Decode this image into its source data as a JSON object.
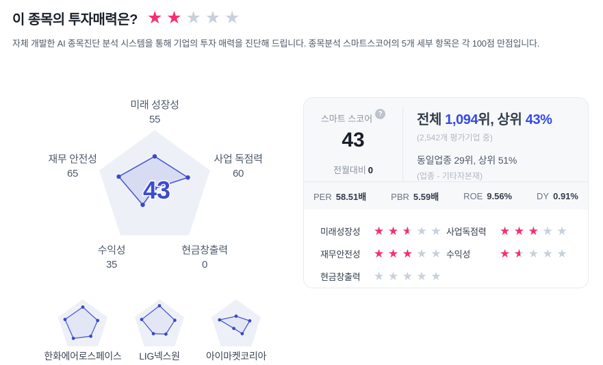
{
  "header": {
    "title": "이 종목의 투자매력은?",
    "rating": 2,
    "rating_max": 5,
    "subtitle": "자체 개발한 AI 종목진단 분석 시스템을 통해 기업의 투자 매력을 진단해 드립니다. 종목분석 스마트스코어의 5개 세부 항목은 각 100점 만점입니다."
  },
  "chart_data": {
    "type": "radar",
    "categories": [
      "미래 성장성",
      "사업 독점력",
      "현금창출력",
      "수익성",
      "재무 안전성"
    ],
    "values": [
      55,
      60,
      0,
      35,
      65
    ],
    "max": 100,
    "center_score": 43,
    "grid": false,
    "peers": [
      {
        "name": "한화에어로스페이스",
        "values": [
          70,
          60,
          52,
          62,
          72
        ]
      },
      {
        "name": "LIG넥스원",
        "values": [
          75,
          62,
          42,
          40,
          72
        ]
      },
      {
        "name": "아이마켓코리아",
        "values": [
          35,
          55,
          40,
          15,
          67
        ]
      }
    ]
  },
  "score_card": {
    "score_label": "스마트 스코어",
    "help_icon": "?",
    "score": "43",
    "mom_label": "전월대비",
    "mom_value": "0",
    "rank_line": {
      "prefix": "전체 ",
      "rank": "1,094",
      "mid": "위, 상위 ",
      "percent": "43%"
    },
    "rank_note": "(2,542개 평가기업 중)",
    "industry_line": "동일업종 29위, 상위 51%",
    "industry_note": "(업종 - 기타자본재)",
    "metrics": [
      {
        "label": "PER",
        "value": "58.51배"
      },
      {
        "label": "PBR",
        "value": "5.59배"
      },
      {
        "label": "ROE",
        "value": "9.56%"
      },
      {
        "label": "DY",
        "value": "0.91%"
      }
    ],
    "ratings": [
      {
        "label": "미래성장성",
        "stars": 2.5
      },
      {
        "label": "사업독점력",
        "stars": 3
      },
      {
        "label": "재무안전성",
        "stars": 3
      },
      {
        "label": "수익성",
        "stars": 1.5
      },
      {
        "label": "현금창출력",
        "stars": 0
      }
    ]
  },
  "icons": {
    "star": "★"
  },
  "colors": {
    "star_pink": "#fa2e6e",
    "star_gray": "#c8d0dc",
    "accent_blue": "#3348e8",
    "radar_stroke": "#4a59d0",
    "radar_dot": "#3949c6",
    "radar_fill": "rgba(106,120,220,0.16)",
    "radar_fill_mini": "rgba(140,152,230,0.10)",
    "radar_bg": "#eef0f8",
    "score_center": "#3b4cd1",
    "text_gray": "#8b95a1",
    "text_light": "#b0b8c1",
    "card_border": "#e7eaee",
    "card_top_bg": "#f7f8fa",
    "divider": "#e5e8eb"
  }
}
